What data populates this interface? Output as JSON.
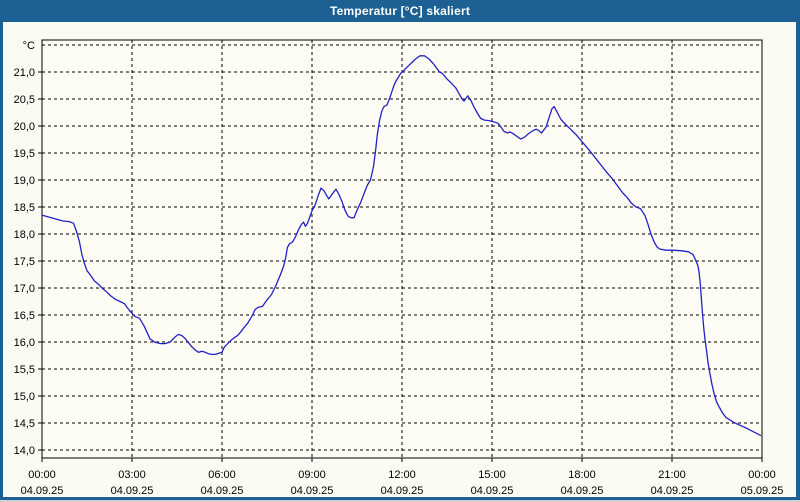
{
  "window": {
    "title": "Temperatur [°C] skaliert",
    "titlebar_color": "#1d6094",
    "border_color": "#1d6094",
    "background_color": "#fafbf2",
    "plot_background_color": "#fdfdf6",
    "grid_color": "#000000",
    "text_color": "#000000"
  },
  "chart_data": {
    "type": "line",
    "title": "Temperatur [°C] skaliert",
    "grid": {
      "style": "dashed",
      "horizontal": true,
      "vertical": true
    },
    "legend_position": "none",
    "y_axis": {
      "unit_label": "°C",
      "min": 14.0,
      "max": 21.5,
      "tick_step": 0.5,
      "decimal_separator": ",",
      "tick_labels": [
        "21,0",
        "20,5",
        "20,0",
        "19,5",
        "19,0",
        "18,5",
        "18,0",
        "17,5",
        "17,0",
        "16,5",
        "16,0",
        "15,5",
        "15,0",
        "14,5",
        "14,0"
      ],
      "tick_values": [
        21.0,
        20.5,
        20.0,
        19.5,
        19.0,
        18.5,
        18.0,
        17.5,
        17.0,
        16.5,
        16.0,
        15.5,
        15.0,
        14.5,
        14.0
      ]
    },
    "x_axis": {
      "hours_span": 24,
      "tick_interval_hours": 3,
      "ticks": [
        {
          "time": "00:00",
          "date": "04.09.25"
        },
        {
          "time": "03:00",
          "date": "04.09.25"
        },
        {
          "time": "06:00",
          "date": "04.09.25"
        },
        {
          "time": "09:00",
          "date": "04.09.25"
        },
        {
          "time": "12:00",
          "date": "04.09.25"
        },
        {
          "time": "15:00",
          "date": "04.09.25"
        },
        {
          "time": "18:00",
          "date": "04.09.25"
        },
        {
          "time": "21:00",
          "date": "04.09.25"
        },
        {
          "time": "00:00",
          "date": "05.09.25"
        }
      ]
    },
    "series": [
      {
        "name": "Temperatur [°C]",
        "color": "#2222c4",
        "points": [
          [
            0.0,
            18.35
          ],
          [
            0.25,
            18.31
          ],
          [
            0.5,
            18.27
          ],
          [
            0.7,
            18.24
          ],
          [
            0.9,
            18.23
          ],
          [
            1.05,
            18.2
          ],
          [
            1.15,
            18.05
          ],
          [
            1.25,
            17.85
          ],
          [
            1.33,
            17.62
          ],
          [
            1.4,
            17.48
          ],
          [
            1.5,
            17.32
          ],
          [
            1.6,
            17.25
          ],
          [
            1.75,
            17.13
          ],
          [
            1.9,
            17.06
          ],
          [
            2.0,
            17.0
          ],
          [
            2.15,
            16.93
          ],
          [
            2.3,
            16.85
          ],
          [
            2.45,
            16.79
          ],
          [
            2.6,
            16.75
          ],
          [
            2.75,
            16.71
          ],
          [
            2.85,
            16.63
          ],
          [
            3.0,
            16.53
          ],
          [
            3.1,
            16.47
          ],
          [
            3.25,
            16.44
          ],
          [
            3.4,
            16.3
          ],
          [
            3.5,
            16.18
          ],
          [
            3.6,
            16.06
          ],
          [
            3.75,
            16.0
          ],
          [
            3.95,
            15.97
          ],
          [
            4.1,
            15.97
          ],
          [
            4.27,
            16.0
          ],
          [
            4.45,
            16.1
          ],
          [
            4.55,
            16.14
          ],
          [
            4.66,
            16.12
          ],
          [
            4.78,
            16.06
          ],
          [
            4.89,
            15.98
          ],
          [
            5.0,
            15.91
          ],
          [
            5.11,
            15.85
          ],
          [
            5.22,
            15.81
          ],
          [
            5.33,
            15.83
          ],
          [
            5.44,
            15.81
          ],
          [
            5.56,
            15.78
          ],
          [
            5.67,
            15.77
          ],
          [
            5.78,
            15.77
          ],
          [
            5.89,
            15.79
          ],
          [
            6.0,
            15.81
          ],
          [
            6.08,
            15.91
          ],
          [
            6.19,
            15.97
          ],
          [
            6.3,
            16.03
          ],
          [
            6.41,
            16.08
          ],
          [
            6.52,
            16.12
          ],
          [
            6.63,
            16.19
          ],
          [
            6.75,
            16.28
          ],
          [
            6.86,
            16.35
          ],
          [
            7.0,
            16.48
          ],
          [
            7.1,
            16.6
          ],
          [
            7.2,
            16.64
          ],
          [
            7.35,
            16.66
          ],
          [
            7.5,
            16.78
          ],
          [
            7.65,
            16.88
          ],
          [
            7.8,
            17.05
          ],
          [
            7.95,
            17.25
          ],
          [
            8.05,
            17.4
          ],
          [
            8.12,
            17.55
          ],
          [
            8.18,
            17.75
          ],
          [
            8.25,
            17.82
          ],
          [
            8.35,
            17.85
          ],
          [
            8.45,
            17.95
          ],
          [
            8.55,
            18.08
          ],
          [
            8.65,
            18.18
          ],
          [
            8.72,
            18.22
          ],
          [
            8.78,
            18.14
          ],
          [
            8.85,
            18.2
          ],
          [
            8.95,
            18.35
          ],
          [
            9.0,
            18.43
          ],
          [
            9.1,
            18.53
          ],
          [
            9.2,
            18.7
          ],
          [
            9.3,
            18.85
          ],
          [
            9.4,
            18.8
          ],
          [
            9.5,
            18.7
          ],
          [
            9.56,
            18.65
          ],
          [
            9.7,
            18.76
          ],
          [
            9.8,
            18.83
          ],
          [
            9.9,
            18.73
          ],
          [
            10.0,
            18.6
          ],
          [
            10.1,
            18.44
          ],
          [
            10.2,
            18.33
          ],
          [
            10.3,
            18.3
          ],
          [
            10.4,
            18.3
          ],
          [
            10.5,
            18.44
          ],
          [
            10.62,
            18.58
          ],
          [
            10.73,
            18.74
          ],
          [
            10.84,
            18.9
          ],
          [
            10.95,
            19.0
          ],
          [
            11.05,
            19.25
          ],
          [
            11.12,
            19.55
          ],
          [
            11.18,
            19.85
          ],
          [
            11.25,
            20.1
          ],
          [
            11.33,
            20.28
          ],
          [
            11.4,
            20.36
          ],
          [
            11.5,
            20.39
          ],
          [
            11.58,
            20.5
          ],
          [
            11.67,
            20.65
          ],
          [
            11.75,
            20.78
          ],
          [
            11.85,
            20.88
          ],
          [
            11.95,
            20.97
          ],
          [
            12.05,
            21.02
          ],
          [
            12.15,
            21.08
          ],
          [
            12.3,
            21.16
          ],
          [
            12.45,
            21.24
          ],
          [
            12.6,
            21.3
          ],
          [
            12.75,
            21.3
          ],
          [
            12.9,
            21.24
          ],
          [
            13.05,
            21.15
          ],
          [
            13.25,
            21.0
          ],
          [
            13.35,
            20.97
          ],
          [
            13.5,
            20.87
          ],
          [
            13.65,
            20.79
          ],
          [
            13.8,
            20.7
          ],
          [
            13.9,
            20.6
          ],
          [
            14.0,
            20.5
          ],
          [
            14.07,
            20.46
          ],
          [
            14.19,
            20.56
          ],
          [
            14.3,
            20.47
          ],
          [
            14.4,
            20.35
          ],
          [
            14.5,
            20.25
          ],
          [
            14.62,
            20.14
          ],
          [
            14.75,
            20.11
          ],
          [
            14.9,
            20.1
          ],
          [
            15.05,
            20.08
          ],
          [
            15.2,
            20.05
          ],
          [
            15.3,
            19.98
          ],
          [
            15.4,
            19.9
          ],
          [
            15.52,
            19.87
          ],
          [
            15.6,
            19.89
          ],
          [
            15.7,
            19.86
          ],
          [
            15.8,
            19.82
          ],
          [
            15.95,
            19.76
          ],
          [
            16.08,
            19.79
          ],
          [
            16.2,
            19.85
          ],
          [
            16.35,
            19.91
          ],
          [
            16.47,
            19.94
          ],
          [
            16.55,
            19.92
          ],
          [
            16.65,
            19.87
          ],
          [
            16.8,
            19.98
          ],
          [
            16.9,
            20.15
          ],
          [
            17.0,
            20.32
          ],
          [
            17.07,
            20.36
          ],
          [
            17.15,
            20.28
          ],
          [
            17.3,
            20.12
          ],
          [
            17.45,
            20.03
          ],
          [
            17.6,
            19.95
          ],
          [
            17.8,
            19.84
          ],
          [
            18.0,
            19.71
          ],
          [
            18.2,
            19.58
          ],
          [
            18.4,
            19.44
          ],
          [
            18.6,
            19.3
          ],
          [
            18.8,
            19.16
          ],
          [
            19.0,
            19.03
          ],
          [
            19.2,
            18.88
          ],
          [
            19.36,
            18.76
          ],
          [
            19.5,
            18.68
          ],
          [
            19.65,
            18.57
          ],
          [
            19.8,
            18.5
          ],
          [
            19.95,
            18.47
          ],
          [
            20.1,
            18.34
          ],
          [
            20.2,
            18.18
          ],
          [
            20.3,
            18.0
          ],
          [
            20.4,
            17.86
          ],
          [
            20.5,
            17.76
          ],
          [
            20.6,
            17.72
          ],
          [
            20.8,
            17.7
          ],
          [
            21.0,
            17.7
          ],
          [
            21.3,
            17.69
          ],
          [
            21.55,
            17.67
          ],
          [
            21.7,
            17.62
          ],
          [
            21.8,
            17.5
          ],
          [
            21.86,
            17.42
          ],
          [
            21.9,
            17.3
          ],
          [
            21.94,
            17.1
          ],
          [
            21.98,
            16.8
          ],
          [
            22.02,
            16.5
          ],
          [
            22.06,
            16.25
          ],
          [
            22.1,
            16.05
          ],
          [
            22.15,
            15.85
          ],
          [
            22.2,
            15.62
          ],
          [
            22.27,
            15.4
          ],
          [
            22.33,
            15.22
          ],
          [
            22.4,
            15.05
          ],
          [
            22.48,
            14.9
          ],
          [
            22.57,
            14.8
          ],
          [
            22.67,
            14.7
          ],
          [
            22.8,
            14.6
          ],
          [
            22.95,
            14.55
          ],
          [
            23.1,
            14.5
          ],
          [
            23.3,
            14.45
          ],
          [
            23.5,
            14.4
          ],
          [
            23.7,
            14.34
          ],
          [
            23.85,
            14.3
          ],
          [
            23.95,
            14.27
          ]
        ]
      }
    ]
  }
}
